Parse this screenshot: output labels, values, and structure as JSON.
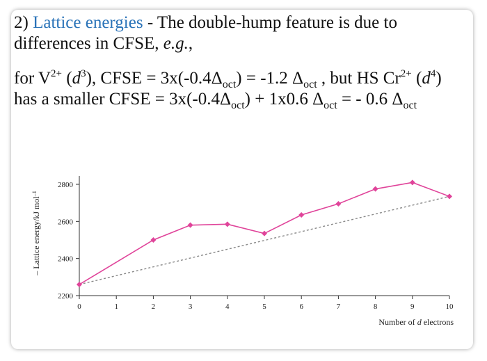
{
  "heading": {
    "number": "2)",
    "highlight": "Lattice energies",
    "rest": " - The double-hump feature is due to differences in CFSE, ",
    "eg": "e.g.",
    "comma": ","
  },
  "explanation": {
    "t1": "for V",
    "sup1": "2+",
    "t2": " (",
    "d1": "d",
    "sup2": "3",
    "t3": "), CFSE = 3x(-0.4Δ",
    "sub1": "oct",
    "t4": ") = -1.2 Δ",
    "sub2": "oct",
    "t5": " , but HS Cr",
    "sup3": "2+",
    "t6": " (",
    "d2": "d",
    "sup4": "4",
    "t7": ") has a smaller CFSE = 3x(-0.4Δ",
    "sub3": "oct",
    "t8": ") + 1x0.6 Δ",
    "sub4": "oct",
    "t9": " = - 0.6 Δ",
    "sub5": "oct"
  },
  "colors": {
    "series": "#e0449a",
    "baseline": "#888888",
    "accent": "#2a73b8"
  },
  "chart_data": {
    "type": "line",
    "xlabel_prefix": "Number of ",
    "xlabel_italic": "d",
    "xlabel_suffix": " electrons",
    "ylabel_prefix": "– Lattice energy/kJ mol",
    "ylabel_sup": "–1",
    "xlim": [
      0,
      10
    ],
    "ylim": [
      2200,
      2800
    ],
    "x_ticks": [
      "0",
      "1",
      "2",
      "3",
      "4",
      "5",
      "6",
      "7",
      "8",
      "9",
      "10"
    ],
    "y_ticks": [
      "2200",
      "2400",
      "2600",
      "2800"
    ],
    "series": [
      {
        "x": [
          0,
          2,
          3,
          4,
          5,
          6,
          7,
          8,
          9,
          10
        ],
        "values": [
          2260,
          2500,
          2580,
          2585,
          2535,
          2635,
          2695,
          2775,
          2810,
          2735
        ]
      }
    ],
    "baseline": {
      "x": [
        0,
        10
      ],
      "values": [
        2260,
        2735
      ]
    }
  }
}
